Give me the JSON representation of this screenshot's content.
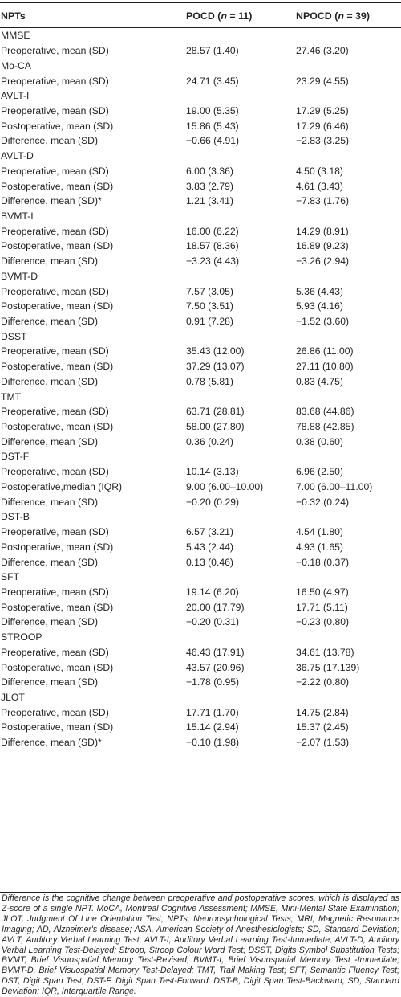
{
  "table": {
    "columns": [
      {
        "label": "NPTs",
        "n_label": "",
        "n_value": ""
      },
      {
        "label": "POCD",
        "n_label": "n",
        "n_value": "11"
      },
      {
        "label": "NPOCD",
        "n_label": "n",
        "n_value": "39"
      }
    ],
    "rows": [
      {
        "label": "MMSE",
        "pocd": "",
        "npocd": ""
      },
      {
        "label": "Preoperative, mean (SD)",
        "pocd": "28.57 (1.40)",
        "npocd": "27.46 (3.20)"
      },
      {
        "label": "Mo-CA",
        "pocd": "",
        "npocd": ""
      },
      {
        "label": "Preoperative, mean (SD)",
        "pocd": "24.71 (3.45)",
        "npocd": "23.29 (4.55)"
      },
      {
        "label": "AVLT-I",
        "pocd": "",
        "npocd": ""
      },
      {
        "label": "Preoperative, mean (SD)",
        "pocd": "19.00 (5.35)",
        "npocd": "17.29 (5.25)"
      },
      {
        "label": "Postoperative, mean (SD)",
        "pocd": "15.86 (5.43)",
        "npocd": "17.29 (6.46)"
      },
      {
        "label": "Difference, mean (SD)",
        "pocd": "−0.66 (4.91)",
        "npocd": "−2.83 (3.25)"
      },
      {
        "label": "AVLT-D",
        "pocd": "",
        "npocd": ""
      },
      {
        "label": "Preoperative, mean (SD)",
        "pocd": "6.00 (3.36)",
        "npocd": "4.50 (3.18)"
      },
      {
        "label": "Postoperative, mean (SD)",
        "pocd": "3.83 (2.79)",
        "npocd": "4.61 (3.43)"
      },
      {
        "label": "Difference, mean (SD)*",
        "pocd": "1.21 (3.41)",
        "npocd": "−7.83 (1.76)"
      },
      {
        "label": "BVMT-I",
        "pocd": "",
        "npocd": ""
      },
      {
        "label": "Preoperative, mean (SD)",
        "pocd": "16.00 (6.22)",
        "npocd": "14.29 (8.91)"
      },
      {
        "label": "Postoperative, mean (SD)",
        "pocd": "18.57 (8.36)",
        "npocd": "16.89 (9.23)"
      },
      {
        "label": "Difference, mean (SD)",
        "pocd": "−3.23 (4.43)",
        "npocd": "−3.26 (2.94)"
      },
      {
        "label": "BVMT-D",
        "pocd": "",
        "npocd": ""
      },
      {
        "label": "Preoperative, mean (SD)",
        "pocd": "7.57 (3.05)",
        "npocd": "5.36 (4.43)"
      },
      {
        "label": "Postoperative, mean (SD)",
        "pocd": "7.50 (3.51)",
        "npocd": "5.93 (4.16)"
      },
      {
        "label": "Difference, mean (SD)",
        "pocd": "0.91 (7.28)",
        "npocd": "−1.52 (3.60)"
      },
      {
        "label": "DSST",
        "pocd": "",
        "npocd": ""
      },
      {
        "label": "Preoperative, mean (SD)",
        "pocd": "35.43 (12.00)",
        "npocd": "26.86 (11.00)"
      },
      {
        "label": "Postoperative, mean (SD)",
        "pocd": "37.29 (13.07)",
        "npocd": "27.11 (10.80)"
      },
      {
        "label": "Difference, mean (SD)",
        "pocd": "0.78 (5.81)",
        "npocd": "0.83 (4.75)"
      },
      {
        "label": "TMT",
        "pocd": "",
        "npocd": ""
      },
      {
        "label": "Preoperative, mean (SD)",
        "pocd": "63.71 (28.81)",
        "npocd": "83.68 (44.86)"
      },
      {
        "label": "Postoperative, mean (SD)",
        "pocd": "58.00 (27.80)",
        "npocd": "78.88 (42.85)"
      },
      {
        "label": "Difference, mean (SD)",
        "pocd": "0.36 (0.24)",
        "npocd": "0.38 (0.60)"
      },
      {
        "label": "DST-F",
        "pocd": "",
        "npocd": ""
      },
      {
        "label": "Preoperative, mean (SD)",
        "pocd": "10.14 (3.13)",
        "npocd": "6.96 (2.50)"
      },
      {
        "label": "Postoperative,median (IQR)",
        "pocd": "9.00 (6.00–10.00)",
        "npocd": "7.00 (6.00–11.00)"
      },
      {
        "label": "Difference, mean (SD)",
        "pocd": "−0.20 (0.29)",
        "npocd": "−0.32 (0.24)"
      },
      {
        "label": "DST-B",
        "pocd": "",
        "npocd": ""
      },
      {
        "label": "Preoperative, mean (SD)",
        "pocd": "6.57 (3.21)",
        "npocd": "4.54 (1.80)"
      },
      {
        "label": "Postoperative, mean (SD)",
        "pocd": "5.43 (2.44)",
        "npocd": "4.93 (1.65)"
      },
      {
        "label": "Difference, mean (SD)",
        "pocd": "0.13 (0.46)",
        "npocd": "−0.18 (0.37)"
      },
      {
        "label": "SFT",
        "pocd": "",
        "npocd": ""
      },
      {
        "label": "Preoperative, mean (SD)",
        "pocd": "19.14 (6.20)",
        "npocd": "16.50 (4.97)"
      },
      {
        "label": "Postoperative, mean (SD)",
        "pocd": "20.00 (17.79)",
        "npocd": "17.71 (5.11)"
      },
      {
        "label": "Difference, mean (SD)",
        "pocd": "−0.20 (0.31)",
        "npocd": "−0.23 (0.80)"
      },
      {
        "label": "STROOP",
        "pocd": "",
        "npocd": ""
      },
      {
        "label": "Preoperative, mean (SD)",
        "pocd": "46.43 (17.91)",
        "npocd": "34.61 (13.78)"
      },
      {
        "label": "Postoperative, mean (SD)",
        "pocd": "43.57 (20.96)",
        "npocd": "36.75 (17.139)"
      },
      {
        "label": "Difference, mean (SD)",
        "pocd": "−1.78 (0.95)",
        "npocd": "−2.22 (0.80)"
      },
      {
        "label": "JLOT",
        "pocd": "",
        "npocd": ""
      },
      {
        "label": "Preoperative, mean (SD)",
        "pocd": "17.71 (1.70)",
        "npocd": "14.75 (2.84)"
      },
      {
        "label": "Postoperative, mean (SD)",
        "pocd": "15.14 (2.94)",
        "npocd": "15.37 (2.45)"
      },
      {
        "label": "Difference, mean (SD)*",
        "pocd": "−0.10 (1.98)",
        "npocd": "−2.07 (1.53)"
      }
    ]
  },
  "footnote": "Difference is the cognitive change between preoperative and postoperative scores, which is displayed as Z-score of a single NPT. MoCA, Montreal Cognitive Assessment; MMSE, Mini-Mental State Examination; JLOT, Judgment Of Line Orientation Test; NPTs, Neuropsychological Tests; MRI, Magnetic Resonance Imaging; AD, Alzheimer's disease; ASA, American Society of Anesthesiologists; SD, Standard Deviation; AVLT, Auditory Verbal Learning Test; AVLT-I, Auditory Verbal Learning Test-Immediate; AVLT-D, Auditory Verbal Learning Test-Delayed; Stroop, Stroop Colour Word Test; DSST, Digits Symbol Substitution Tests; BVMT, Brief Visuospatial Memory Test-Revised; BVMT-I, Brief Visuospatial Memory Test -Immediate; BVMT-D, Brief Visuospatial Memory Test-Delayed; TMT, Trail Making Test; SFT, Semantic Fluency Test; DST, Digit Span Test; DST-F, Digit Span Test-Forward; DST-B, Digit Span Test-Backward; SD, Standard Deviation; IQR, Interquartile Range."
}
